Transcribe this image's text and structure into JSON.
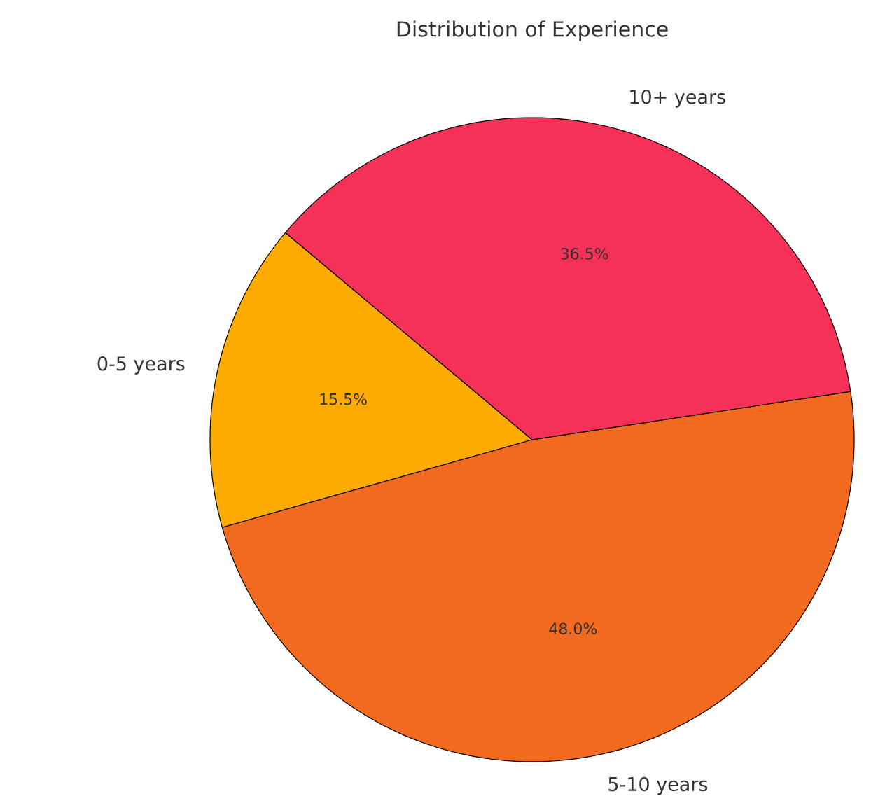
{
  "chart_data": {
    "type": "pie",
    "title": "Distribution of Experience",
    "categories": [
      "0-5 years",
      "5-10 years",
      "10+ years"
    ],
    "values": [
      15.5,
      48.0,
      36.5
    ],
    "colors": [
      "#fdab00",
      "#f26a20",
      "#f63157"
    ],
    "value_labels": [
      "15.5%",
      "48.0%",
      "36.5%"
    ]
  }
}
